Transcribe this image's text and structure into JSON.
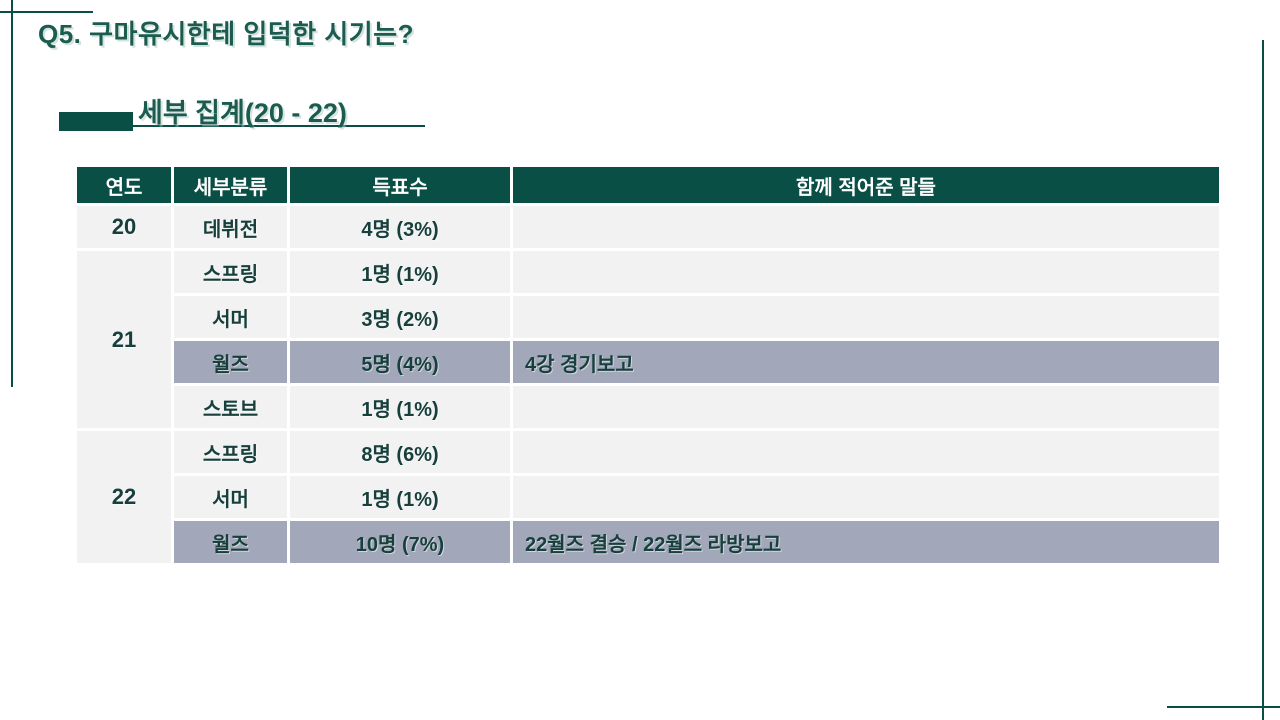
{
  "slide": {
    "question_title": "Q5. 구마유시한테 입덕한 시기는?",
    "section_title": "세부 집계(20 - 22)"
  },
  "colors": {
    "accent": "#0A4F46",
    "title_text": "#1C5B50",
    "row_bg": "#F2F2F2",
    "highlight_bg": "#A3A7BA",
    "cell_text": "#17403C",
    "header_text": "#FFFFFF"
  },
  "table": {
    "headers": [
      "연도",
      "세부분류",
      "득표수",
      "함께 적어준 말들"
    ],
    "groups": [
      {
        "year": "20",
        "rows": [
          {
            "category": "데뷔전",
            "votes": "4명 (3%)",
            "note": "",
            "highlight": false
          }
        ]
      },
      {
        "year": "21",
        "rows": [
          {
            "category": "스프링",
            "votes": "1명 (1%)",
            "note": "",
            "highlight": false
          },
          {
            "category": "서머",
            "votes": "3명 (2%)",
            "note": "",
            "highlight": false
          },
          {
            "category": "월즈",
            "votes": "5명 (4%)",
            "note": "4강 경기보고",
            "highlight": true
          },
          {
            "category": "스토브",
            "votes": "1명 (1%)",
            "note": "",
            "highlight": false
          }
        ]
      },
      {
        "year": "22",
        "rows": [
          {
            "category": "스프링",
            "votes": "8명 (6%)",
            "note": "",
            "highlight": false
          },
          {
            "category": "서머",
            "votes": "1명 (1%)",
            "note": "",
            "highlight": false
          },
          {
            "category": "월즈",
            "votes": "10명 (7%)",
            "note": "22월즈 결승 / 22월즈 라방보고",
            "highlight": true
          }
        ]
      }
    ]
  }
}
